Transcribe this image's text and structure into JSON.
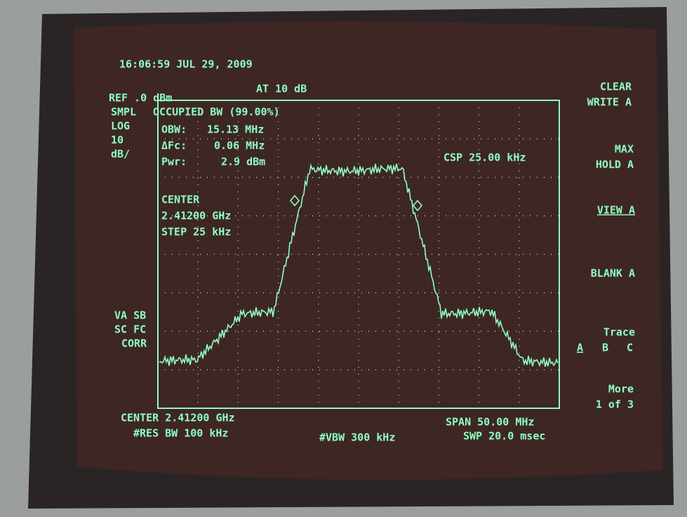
{
  "header": {
    "timestamp": "16:06:59 JUL 29, 2009",
    "reference": "REF .0 dBm",
    "attenuation": "AT 10 dB"
  },
  "left_labels": [
    "SMPL",
    "LOG",
    "10",
    "dB/"
  ],
  "left_lower_labels": [
    "VA SB",
    "SC FC",
    "CORR"
  ],
  "measurement": {
    "title": "OCCUPIED BW (99.00%)",
    "rows": [
      [
        "OBW:",
        "15.13 MHz"
      ],
      [
        "ΔFc:",
        "0.06 MHz"
      ],
      [
        "Pwr:",
        "2.9 dBm"
      ]
    ]
  },
  "center_box": [
    "CENTER",
    "2.41200 GHz",
    "STEP 25 kHz"
  ],
  "channel_spacing": "CSP 25.00 kHz",
  "footer": {
    "center": "CENTER 2.41200 GHz",
    "res_bw": "#RES BW 100 kHz",
    "vbw": "#VBW 300 kHz",
    "span": "SPAN 50.00 MHz",
    "sweep": "SWP 20.0 msec"
  },
  "softkeys": [
    [
      "CLEAR",
      "WRITE A"
    ],
    [
      "MAX",
      "HOLD A"
    ],
    [
      "VIEW A"
    ],
    [
      "BLANK A"
    ],
    [
      "Trace",
      "A",
      "B",
      "C"
    ],
    [
      "More",
      "1 of 3"
    ]
  ]
}
